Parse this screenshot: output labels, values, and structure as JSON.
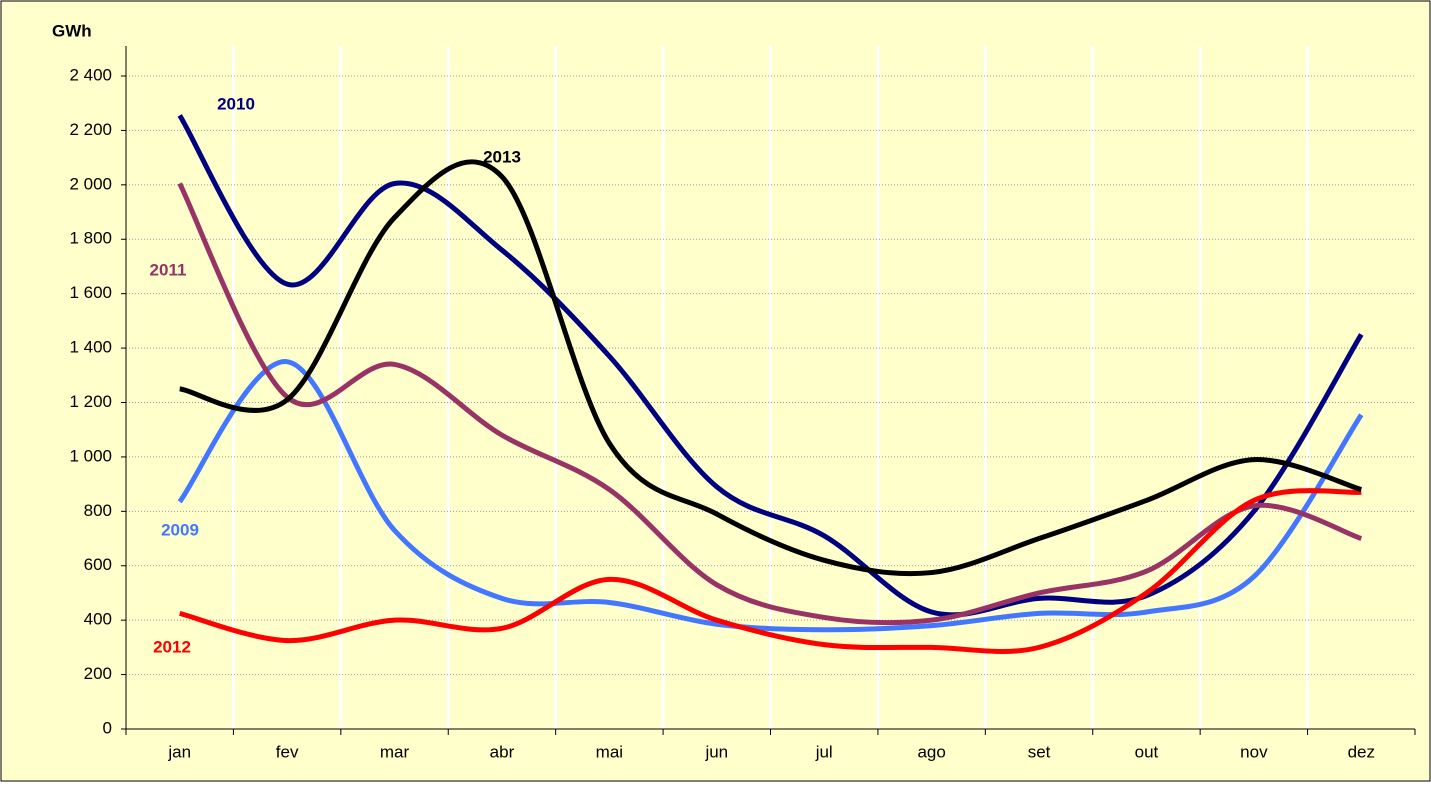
{
  "chart_data": {
    "type": "line",
    "y_label": "GWh",
    "categories": [
      "jan",
      "fev",
      "mar",
      "abr",
      "mai",
      "jun",
      "jul",
      "ago",
      "set",
      "out",
      "nov",
      "dez"
    ],
    "series": [
      {
        "name": "2009",
        "color": "#4477ff",
        "values": [
          835,
          1350,
          730,
          480,
          465,
          385,
          365,
          380,
          425,
          430,
          560,
          1155
        ]
      },
      {
        "name": "2010",
        "color": "#000080",
        "values": [
          2255,
          1635,
          2005,
          1760,
          1370,
          890,
          710,
          430,
          480,
          490,
          800,
          1450
        ]
      },
      {
        "name": "2011",
        "color": "#993366",
        "values": [
          2005,
          1220,
          1340,
          1080,
          880,
          530,
          410,
          400,
          500,
          580,
          820,
          700
        ]
      },
      {
        "name": "2012",
        "color": "#ff0000",
        "values": [
          425,
          325,
          400,
          370,
          550,
          400,
          310,
          300,
          300,
          500,
          840,
          870
        ]
      },
      {
        "name": "2013",
        "color": "#000000",
        "values": [
          1250,
          1210,
          1880,
          2030,
          1050,
          790,
          620,
          575,
          700,
          840,
          990,
          880
        ]
      }
    ],
    "ylim": [
      0,
      2400
    ],
    "yticks": [
      0,
      200,
      400,
      600,
      800,
      {
        "value": 1000,
        "label": "1 000"
      },
      {
        "value": 1200,
        "label": "1 200"
      },
      {
        "value": 1400,
        "label": "1 400"
      },
      {
        "value": 1600,
        "label": "1 600"
      },
      {
        "value": 1800,
        "label": "1 800"
      },
      {
        "value": 2000,
        "label": "2 000"
      },
      {
        "value": 2200,
        "label": "2 200"
      },
      {
        "value": 2400,
        "label": "2 400"
      }
    ],
    "grid": true
  }
}
